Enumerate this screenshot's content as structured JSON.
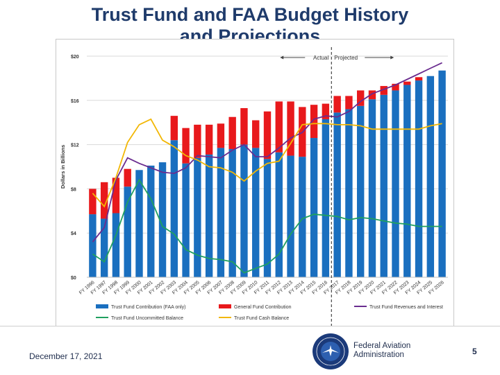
{
  "page": {
    "title_line1": "Trust Fund and FAA Budget History",
    "title_line2": "and Projections",
    "date": "December 17, 2021",
    "agency_line1": "Federal Aviation",
    "agency_line2": "Administration",
    "page_number": "5",
    "seal_text": "FEDERAL AVIATION ADMINISTRATION"
  },
  "chart_data": {
    "type": "bar",
    "stacked": true,
    "title": "",
    "ylabel": "Dollars in Billions",
    "xlabel": "",
    "ylim": [
      0,
      20
    ],
    "yticks": [
      0,
      4,
      8,
      12,
      16,
      20
    ],
    "ytick_labels": [
      "$0",
      "$4",
      "$8",
      "$12",
      "$16",
      "$20"
    ],
    "categories": [
      "FY 1996",
      "FY 1997",
      "FY 1998",
      "FY 1999",
      "FY 2000",
      "FY 2001",
      "FY 2002",
      "FY 2003",
      "FY 2004",
      "FY 2005",
      "FY 2006",
      "FY 2007",
      "FY 2008",
      "FY 2009",
      "FY 2010",
      "FY 2011",
      "FY 2012",
      "FY 2013",
      "FY 2014",
      "FY 2015",
      "FY 2016",
      "FY 2017",
      "FY 2018",
      "FY 2019",
      "FY 2020",
      "FY 2021",
      "FY 2022",
      "FY 2023",
      "FY 2024",
      "FY 2025",
      "FY 2026"
    ],
    "annotations": {
      "actual_label": "Actual",
      "projected_label": "Projected",
      "divider_after_category": "FY 2016"
    },
    "series": [
      {
        "name": "Trust Fund Contribution (FAA only)",
        "kind": "bar",
        "color": "#1a6fbf",
        "values": [
          5.7,
          5.3,
          5.8,
          8.2,
          9.7,
          10.1,
          10.4,
          12.4,
          10.3,
          10.8,
          11.1,
          11.7,
          11.6,
          12.0,
          11.7,
          10.7,
          11.3,
          11.0,
          10.9,
          12.6,
          14.3,
          14.9,
          15.2,
          15.5,
          16.1,
          16.5,
          16.9,
          17.4,
          17.8,
          18.2,
          18.7
        ]
      },
      {
        "name": "General Fund Contribution",
        "kind": "bar",
        "color": "#e8191c",
        "values": [
          2.3,
          3.3,
          3.2,
          1.6,
          0,
          0,
          0,
          2.2,
          3.2,
          3.0,
          2.7,
          2.2,
          2.9,
          3.3,
          2.5,
          4.3,
          4.6,
          4.9,
          4.5,
          3.0,
          1.4,
          1.5,
          1.2,
          1.4,
          0.8,
          0.8,
          0.6,
          0.3,
          0.3,
          0,
          0
        ]
      },
      {
        "name": "Trust Fund Revenues and Interest",
        "kind": "line",
        "color": "#6a2c8f",
        "values": [
          3.2,
          4.5,
          8.8,
          10.8,
          10.3,
          9.9,
          9.5,
          9.4,
          9.9,
          11.0,
          10.9,
          10.8,
          11.5,
          12.0,
          10.9,
          10.9,
          11.7,
          12.6,
          13.1,
          14.3,
          14.6,
          14.5,
          15.0,
          15.9,
          16.6,
          17.0,
          17.4,
          17.9,
          18.4,
          18.9,
          19.4
        ]
      },
      {
        "name": "Trust Fund Uncommitted Balance",
        "kind": "line",
        "color": "#20a060",
        "values": [
          2.1,
          1.4,
          3.8,
          6.8,
          8.8,
          7.1,
          4.6,
          3.9,
          2.5,
          2.0,
          1.7,
          1.6,
          1.4,
          0.4,
          0.8,
          1.2,
          2.1,
          3.9,
          5.3,
          5.7,
          5.6,
          5.5,
          5.2,
          5.4,
          5.3,
          5.1,
          4.9,
          4.8,
          4.6,
          4.6,
          4.6
        ]
      },
      {
        "name": "Trust Fund Cash Balance",
        "kind": "line",
        "color": "#f2b705",
        "values": [
          7.6,
          6.4,
          9.0,
          12.2,
          13.8,
          14.3,
          12.4,
          11.8,
          11.0,
          10.6,
          10.0,
          9.9,
          9.5,
          8.7,
          9.6,
          10.3,
          10.5,
          12.1,
          13.8,
          13.9,
          13.9,
          13.8,
          13.8,
          13.7,
          13.4,
          13.4,
          13.4,
          13.4,
          13.4,
          13.7,
          13.9
        ]
      }
    ],
    "legend": {
      "placement": "bottom",
      "entries": [
        "Trust Fund Contribution (FAA only)",
        "General Fund Contribution",
        "Trust Fund Revenues and Interest",
        "Trust Fund Uncommitted Balance",
        "Trust Fund Cash Balance"
      ]
    },
    "grid": true
  }
}
